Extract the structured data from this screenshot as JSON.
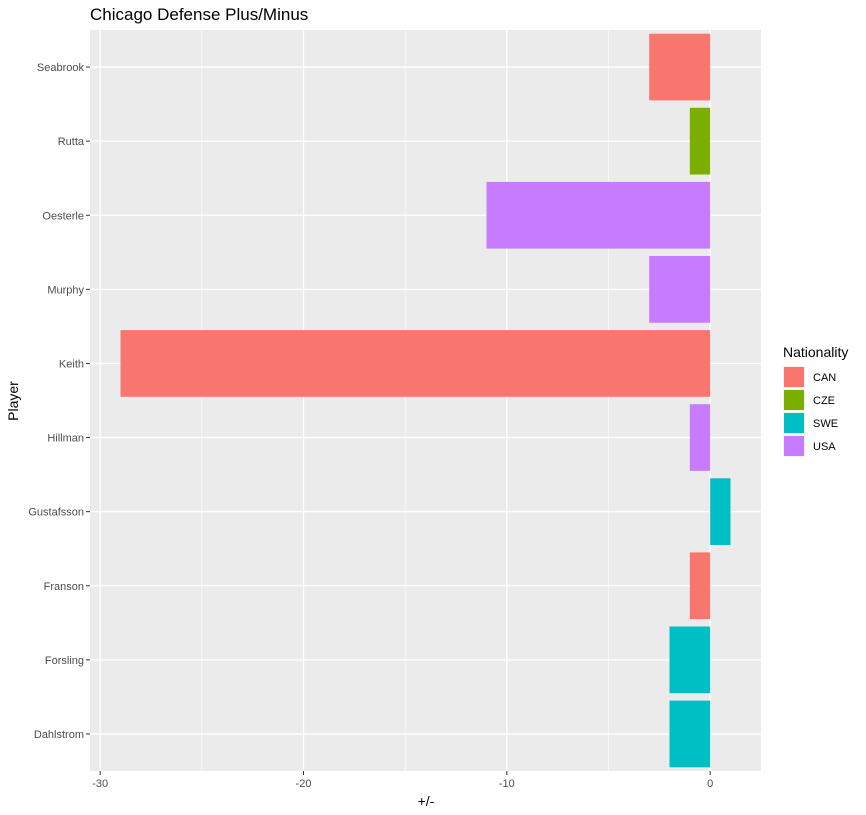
{
  "chart_data": {
    "type": "bar",
    "orientation": "horizontal",
    "title": "Chicago Defense Plus/Minus",
    "xlabel": "+/-",
    "ylabel": "Player",
    "xlim": [
      -30.5,
      2.5
    ],
    "x_ticks": [
      -30,
      -20,
      -10,
      0
    ],
    "grid": true,
    "legend_position": "right",
    "legend": {
      "title": "Nationality",
      "entries": [
        {
          "name": "CAN",
          "color": "#F8766D"
        },
        {
          "name": "CZE",
          "color": "#7CAE00"
        },
        {
          "name": "SWE",
          "color": "#00BFC4"
        },
        {
          "name": "USA",
          "color": "#C77CFF"
        }
      ]
    },
    "bars": [
      {
        "player": "Dahlstrom",
        "value": -2,
        "nationality": "SWE"
      },
      {
        "player": "Forsling",
        "value": -2,
        "nationality": "SWE"
      },
      {
        "player": "Franson",
        "value": -1,
        "nationality": "CAN"
      },
      {
        "player": "Gustafsson",
        "value": 1,
        "nationality": "SWE"
      },
      {
        "player": "Hillman",
        "value": -1,
        "nationality": "USA"
      },
      {
        "player": "Keith",
        "value": -29,
        "nationality": "CAN"
      },
      {
        "player": "Murphy",
        "value": -3,
        "nationality": "USA"
      },
      {
        "player": "Oesterle",
        "value": -11,
        "nationality": "USA"
      },
      {
        "player": "Rutta",
        "value": -1,
        "nationality": "CZE"
      },
      {
        "player": "Seabrook",
        "value": -3,
        "nationality": "CAN"
      }
    ]
  }
}
